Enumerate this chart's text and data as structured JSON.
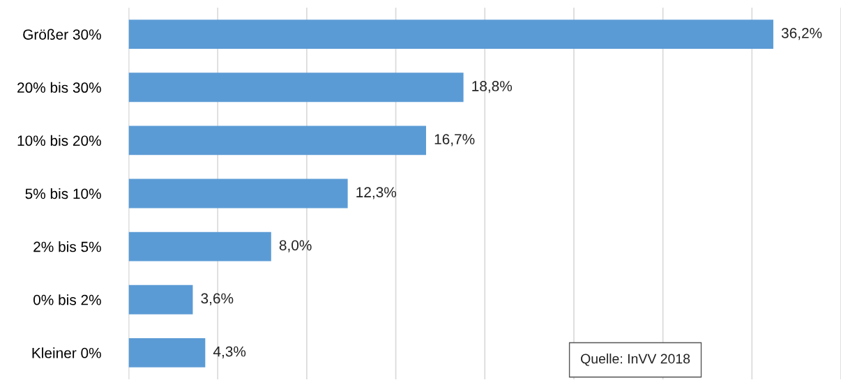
{
  "chart_data": {
    "type": "bar",
    "orientation": "horizontal",
    "categories": [
      "Größer 30%",
      "20% bis 30%",
      "10% bis 20%",
      "5% bis 10%",
      "2% bis 5%",
      "0% bis 2%",
      "Kleiner 0%"
    ],
    "values": [
      36.2,
      18.8,
      16.7,
      12.3,
      8.0,
      3.6,
      4.3
    ],
    "value_labels": [
      "36,2%",
      "18,8%",
      "16,7%",
      "12,3%",
      "8,0%",
      "3,6%",
      "4,3%"
    ],
    "color": "#5b9bd5",
    "xlim": [
      0,
      40
    ],
    "xticks": [
      {
        "value": 0,
        "label": null
      },
      {
        "value": 5,
        "label": null
      },
      {
        "value": 10,
        "label": null
      },
      {
        "value": 15,
        "label": null
      },
      {
        "value": 20,
        "label": null
      },
      {
        "value": 25,
        "label": null
      },
      {
        "value": 30,
        "label": null
      },
      {
        "value": 35,
        "label": null
      },
      {
        "value": 40,
        "label": null
      }
    ],
    "tick_labels": "y",
    "grid": "x",
    "annotations": [
      "Quelle: InVV 2018"
    ]
  }
}
